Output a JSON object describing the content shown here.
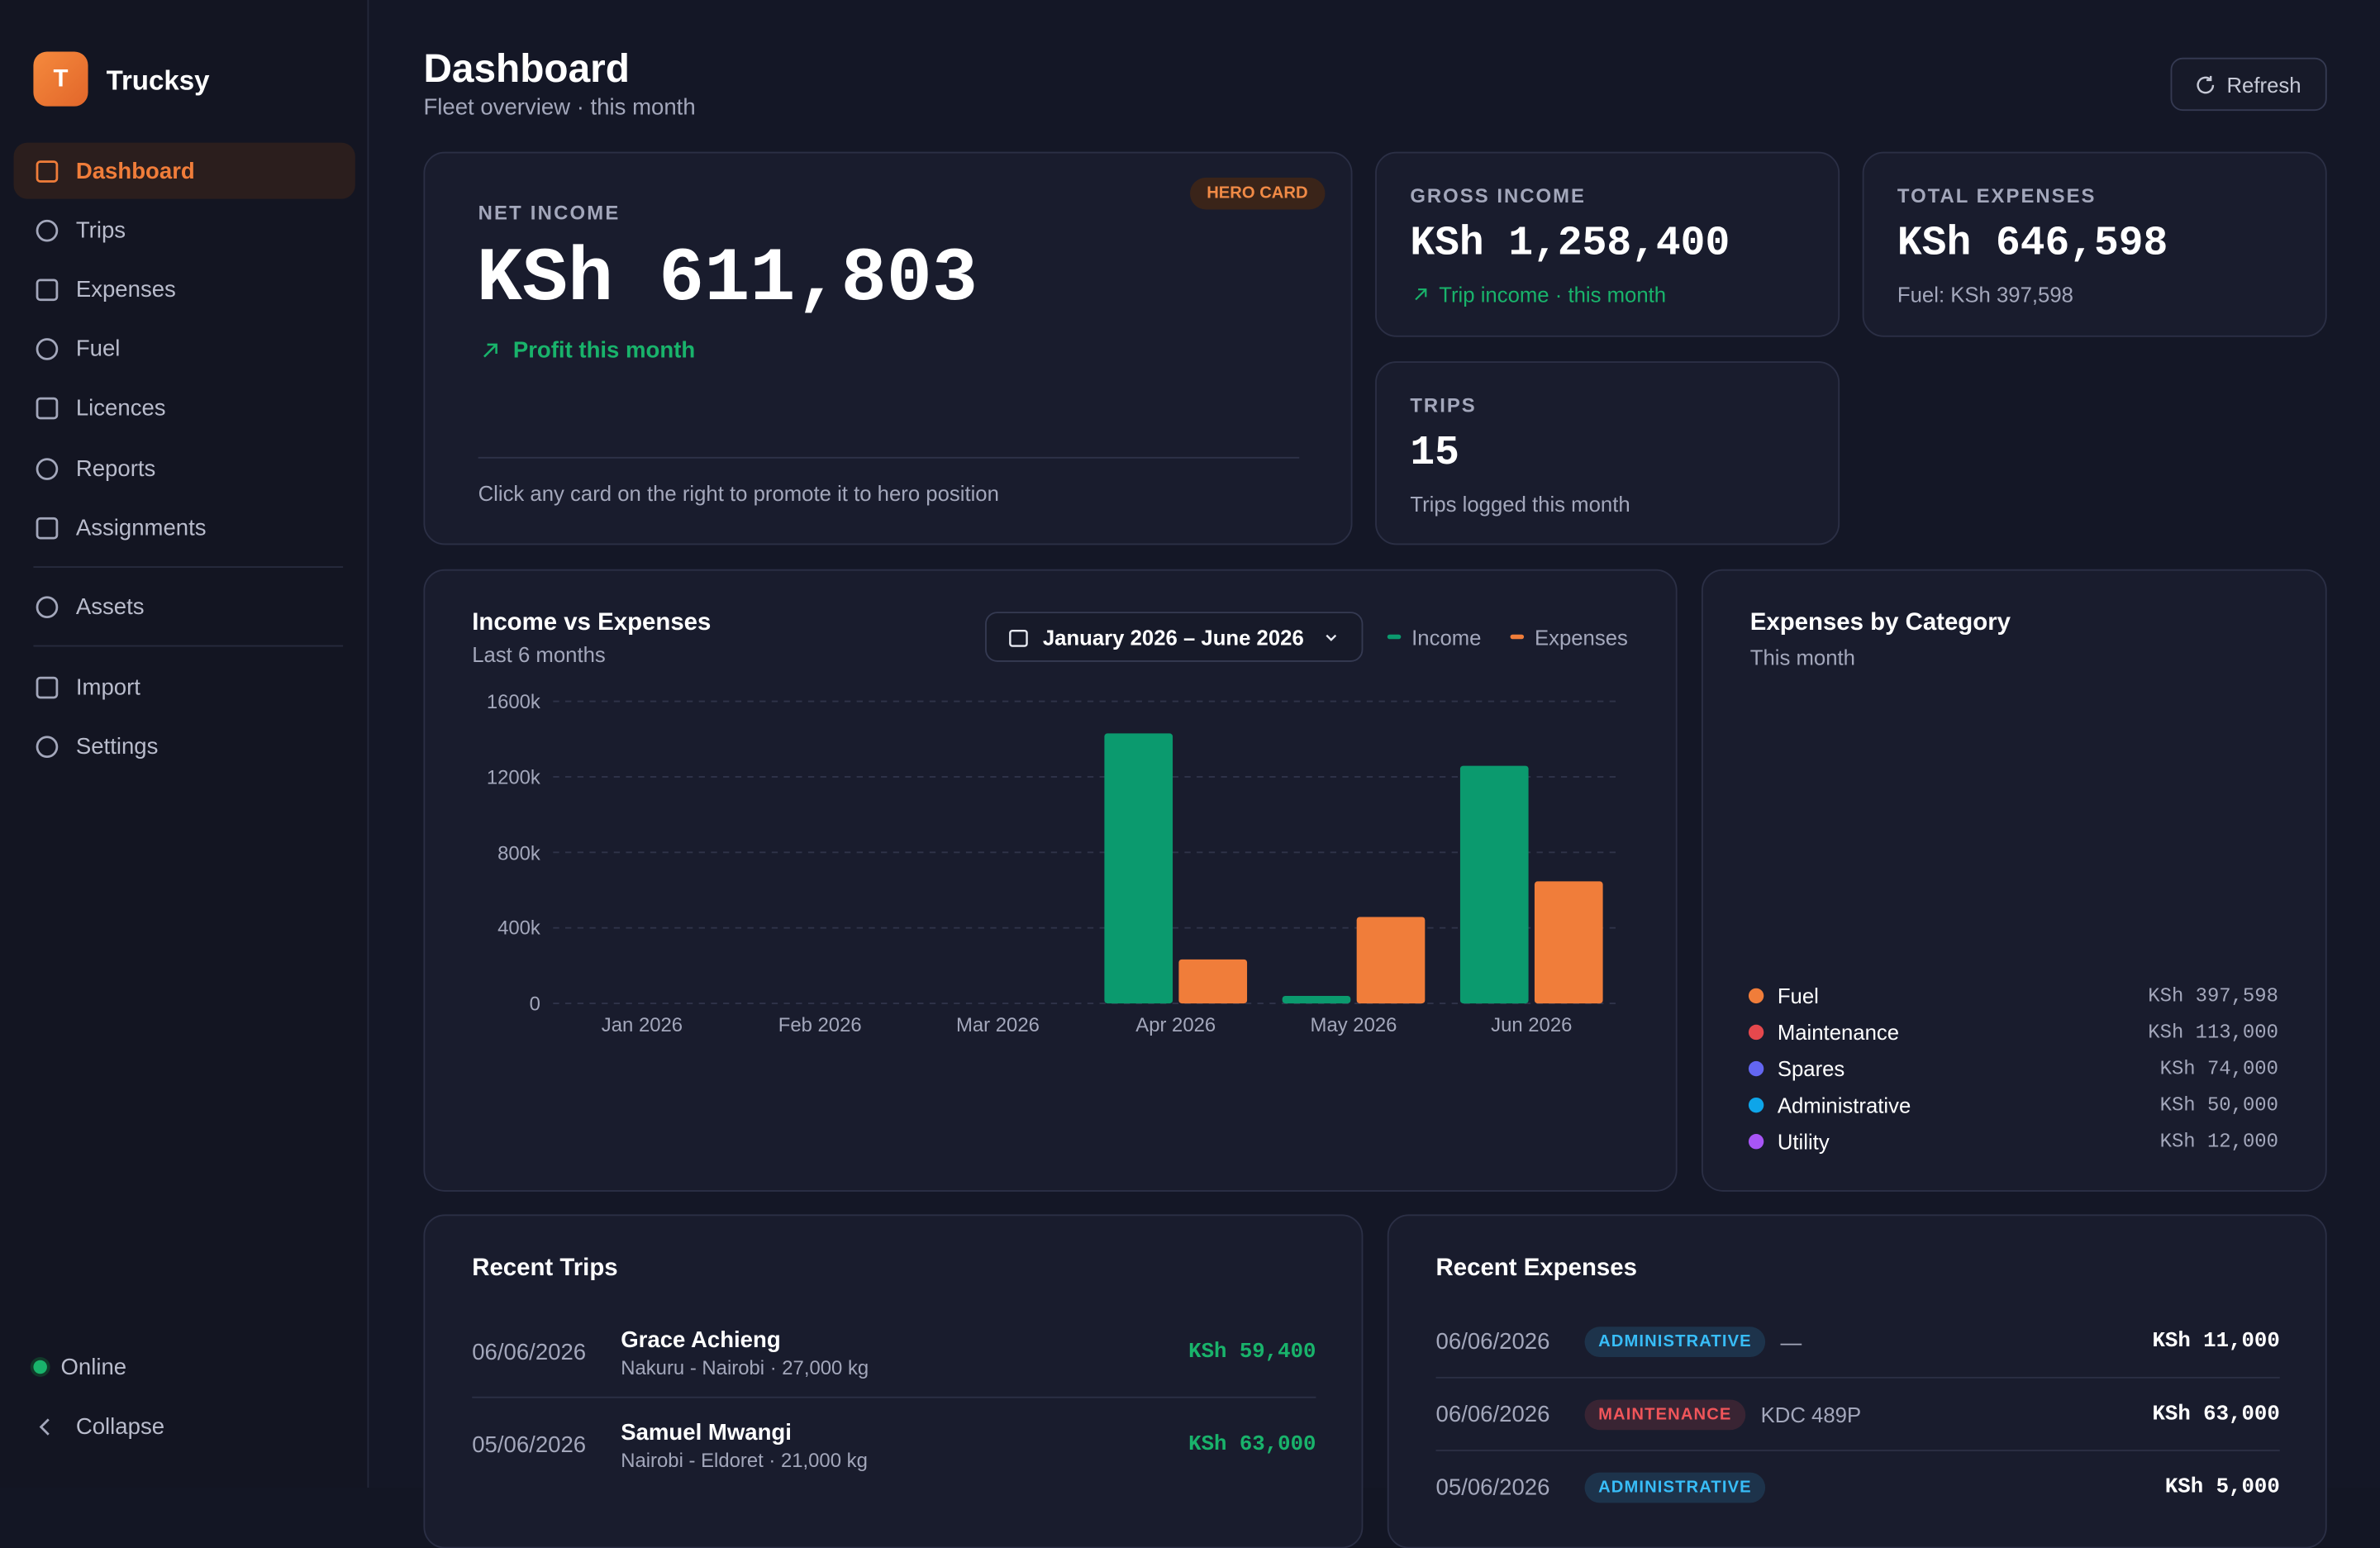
{
  "sidebar": {
    "logo": "T",
    "brand": "Trucksy",
    "nav": [
      "Dashboard",
      "Trips",
      "Expenses",
      "Fuel",
      "Licences",
      "Reports",
      "Assignments",
      "Assets",
      "Import",
      "Settings"
    ],
    "status": "Online",
    "collapse": "Collapse"
  },
  "header": {
    "title": "Dashboard",
    "subtitle": "Fleet overview · this month",
    "refresh": "Refresh"
  },
  "hero": {
    "badge": "HERO CARD",
    "label": "NET INCOME",
    "value": "KSh 611,803",
    "trend": "Profit this month",
    "hint": "Click any card on the right to promote it to hero position"
  },
  "cards": [
    {
      "label": "GROSS INCOME",
      "value": "KSh 1,258,400",
      "note": "Trip income · this month"
    },
    {
      "label": "TOTAL EXPENSES",
      "value": "KSh 646,598",
      "note": "Fuel: KSh 397,598"
    },
    {
      "label": "TRIPS",
      "value": "15",
      "note": "Trips logged this month"
    }
  ],
  "chart_data": [
    {
      "type": "bar",
      "title": "Income vs Expenses",
      "subtitle": "Last 6 months",
      "date_range": "January 2026 – June 2026",
      "categories": [
        "Jan 2026",
        "Feb 2026",
        "Mar 2026",
        "Apr 2026",
        "May 2026",
        "Jun 2026"
      ],
      "series": [
        {
          "name": "Income",
          "color": "#0b9a6e",
          "values": [
            0,
            0,
            0,
            1430000,
            40000,
            1258400
          ]
        },
        {
          "name": "Expenses",
          "color": "#f07d3a",
          "values": [
            0,
            0,
            0,
            233000,
            458000,
            646598
          ]
        }
      ],
      "ylim": [
        0,
        1600000
      ],
      "yticks": [
        0,
        {
          "value": 400000,
          "label": "400k"
        },
        {
          "value": 800000,
          "label": "800k"
        },
        {
          "value": 1200000,
          "label": "1200k"
        },
        {
          "value": 1600000,
          "label": "1600k"
        }
      ],
      "grid": true
    },
    {
      "type": "pie",
      "donut": true,
      "title": "Expenses by Category",
      "subtitle": "This month",
      "categories": [
        "Fuel",
        "Maintenance",
        "Spares",
        "Administrative",
        "Utility"
      ],
      "values": [
        397598,
        113000,
        74000,
        50000,
        12000
      ],
      "value_labels": [
        "KSh 397,598",
        "KSh 113,000",
        "KSh 74,000",
        "KSh 50,000",
        "KSh 12,000"
      ],
      "colors": [
        "#f07d3a",
        "#e5484d",
        "#6366f1",
        "#0ea5e9",
        "#a855f7"
      ]
    }
  ],
  "recent_trips": {
    "title": "Recent Trips",
    "rows": [
      {
        "date": "06/06/2026",
        "driver": "Grace Achieng",
        "route": "Nakuru - Nairobi · 27,000 kg",
        "amount": "KSh 59,400"
      },
      {
        "date": "05/06/2026",
        "driver": "Samuel Mwangi",
        "route": "Nairobi - Eldoret · 21,000 kg",
        "amount": "KSh 63,000"
      }
    ]
  },
  "recent_expenses": {
    "title": "Recent Expenses",
    "rows": [
      {
        "date": "06/06/2026",
        "category": "ADMINISTRATIVE",
        "color": "#38bdf8",
        "ref": "—",
        "amount": "KSh 11,000"
      },
      {
        "date": "06/06/2026",
        "category": "MAINTENANCE",
        "color": "#f0555a",
        "ref": "KDC 489P",
        "amount": "KSh 63,000"
      },
      {
        "date": "05/06/2026",
        "category": "ADMINISTRATIVE",
        "color": "#38bdf8",
        "amount": "KSh 5,000"
      }
    ]
  }
}
